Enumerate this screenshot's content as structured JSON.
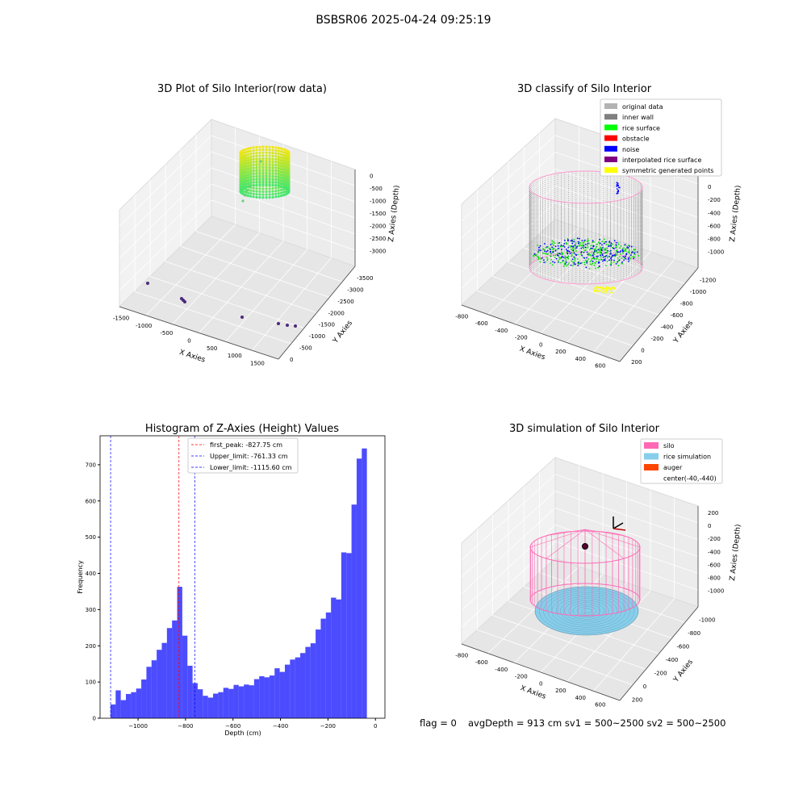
{
  "suptitle": "BSBSR06 2025-04-24 09:25:19",
  "panels": {
    "raw": {
      "title": "3D Plot of Silo Interior(row data)",
      "xlabel": "X Axies",
      "ylabel": "Y Axies",
      "zlabel": "Z Axies (Depth)",
      "x_ticks": [
        "-1500",
        "-1000",
        "-500",
        "0",
        "500",
        "1000",
        "1500"
      ],
      "y_ticks": [
        "0",
        "-500",
        "-1000",
        "-1500",
        "-2000",
        "-2500",
        "-3000",
        "-3500"
      ],
      "z_ticks": [
        "0",
        "-500",
        "-1000",
        "-1500",
        "-2000",
        "-2500",
        "-3000"
      ]
    },
    "classify": {
      "title": "3D classify of Silo Interior",
      "xlabel": "X Axies",
      "ylabel": "Y Axies",
      "zlabel": "Z Axies (Depth)",
      "x_ticks": [
        "-800",
        "-600",
        "-400",
        "-200",
        "0",
        "200",
        "400",
        "600"
      ],
      "y_ticks": [
        "200",
        "0",
        "-200",
        "-400",
        "-600",
        "-800",
        "-1000",
        "-1200"
      ],
      "z_ticks": [
        "200",
        "0",
        "-200",
        "-400",
        "-600",
        "-800",
        "-1000"
      ],
      "legend": [
        {
          "label": "original data",
          "color": "#b3b3b3"
        },
        {
          "label": "inner wall",
          "color": "#808080"
        },
        {
          "label": "rice surface",
          "color": "#00ff00"
        },
        {
          "label": "obstacle",
          "color": "#ff0000"
        },
        {
          "label": "noise",
          "color": "#0000ff"
        },
        {
          "label": "interpolated rice surface",
          "color": "#800080"
        },
        {
          "label": "symmetric generated points",
          "color": "#ffff00"
        }
      ]
    },
    "simulation": {
      "title": "3D simulation of Silo Interior",
      "xlabel": "X Axies",
      "ylabel": "Y Axies",
      "zlabel": "Z Axies (Depth)",
      "x_ticks": [
        "-800",
        "-600",
        "-400",
        "-200",
        "0",
        "200",
        "400",
        "600"
      ],
      "y_ticks": [
        "200",
        "0",
        "-200",
        "-400",
        "-600",
        "-800",
        "-1000"
      ],
      "z_ticks": [
        "200",
        "0",
        "-200",
        "-400",
        "-600",
        "-800",
        "-1000"
      ],
      "legend": [
        {
          "label": "silo",
          "color": "#ff69b4"
        },
        {
          "label": "rice simulation",
          "color": "#87ceeb"
        },
        {
          "label": "auger",
          "color": "#ff4500"
        },
        {
          "label": "center(-40,-440)",
          "color": ""
        }
      ]
    }
  },
  "chart_data": [
    {
      "type": "bar",
      "title": "Histogram of Z-Axies (Height) Values",
      "xlabel": "Depth (cm)",
      "ylabel": "Frequency",
      "xlim": [
        -1160,
        40
      ],
      "ylim": [
        0,
        780
      ],
      "x_ticks": [
        -1000,
        -800,
        -600,
        -400,
        -200,
        0
      ],
      "y_ticks": [
        0,
        100,
        200,
        300,
        400,
        500,
        600,
        700
      ],
      "bar_color": "#0000ff",
      "bin_width": 21.6,
      "bin_start": -1116,
      "values": [
        38,
        77,
        50,
        67,
        72,
        82,
        107,
        142,
        160,
        189,
        208,
        249,
        270,
        363,
        228,
        145,
        97,
        80,
        62,
        57,
        68,
        72,
        84,
        81,
        92,
        88,
        93,
        91,
        108,
        116,
        113,
        118,
        138,
        128,
        148,
        162,
        168,
        180,
        197,
        207,
        245,
        275,
        292,
        333,
        328,
        458,
        456,
        590,
        717,
        745
      ],
      "lines": [
        {
          "label": "first_peak: -827.75 cm",
          "x": -827.75,
          "color": "#ff0000"
        },
        {
          "label": "Upper_limit: -761.33 cm",
          "x": -761.33,
          "color": "#0000ff"
        },
        {
          "label": "Lower_limit: -1115.60 cm",
          "x": -1115.6,
          "color": "#0000ff"
        }
      ],
      "legend_position": "upper-center"
    }
  ],
  "footer": {
    "flag": "flag = 0",
    "stats": "avgDepth = 913 cm  sv1 = 500~2500  sv2 = 500~2500"
  }
}
